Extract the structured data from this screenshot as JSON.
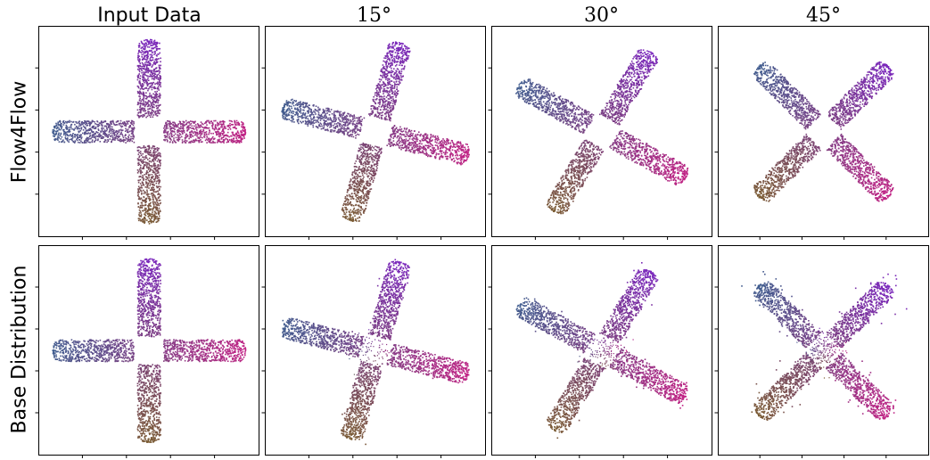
{
  "columns": [
    "Input Data",
    "15°",
    "30°",
    "45°"
  ],
  "rows": [
    "Flow4Flow",
    "Base Distribution"
  ],
  "colors": {
    "arm_up": "#7a24c4",
    "arm_right": "#c81f84",
    "arm_left": "#3a6090",
    "arm_down": "#7a5e2c",
    "frame": "#000000"
  },
  "chart_data": [
    {
      "type": "scatter",
      "row": "Flow4Flow",
      "column": "Input Data",
      "rotation_deg": 0,
      "noise": 0,
      "xlim": [
        -1,
        1
      ],
      "ylim": [
        -1,
        1
      ],
      "grid": false,
      "description_arms": [
        "up",
        "right",
        "down",
        "left"
      ]
    },
    {
      "type": "scatter",
      "row": "Flow4Flow",
      "column": "15°",
      "rotation_deg": 15,
      "noise": 0,
      "xlim": [
        -1,
        1
      ],
      "ylim": [
        -1,
        1
      ],
      "grid": false,
      "description_arms": [
        "up",
        "right",
        "down",
        "left"
      ]
    },
    {
      "type": "scatter",
      "row": "Flow4Flow",
      "column": "30°",
      "rotation_deg": 30,
      "noise": 0,
      "xlim": [
        -1,
        1
      ],
      "ylim": [
        -1,
        1
      ],
      "grid": false,
      "description_arms": [
        "up",
        "right",
        "down",
        "left"
      ]
    },
    {
      "type": "scatter",
      "row": "Flow4Flow",
      "column": "45°",
      "rotation_deg": 45,
      "noise": 0,
      "xlim": [
        -1,
        1
      ],
      "ylim": [
        -1,
        1
      ],
      "grid": false,
      "description_arms": [
        "up",
        "right",
        "down",
        "left"
      ]
    },
    {
      "type": "scatter",
      "row": "Base Distribution",
      "column": "Input Data",
      "rotation_deg": 0,
      "noise": 0,
      "xlim": [
        -1,
        1
      ],
      "ylim": [
        -1,
        1
      ],
      "grid": false,
      "description_arms": [
        "up",
        "right",
        "down",
        "left"
      ]
    },
    {
      "type": "scatter",
      "row": "Base Distribution",
      "column": "15°",
      "rotation_deg": 15,
      "noise": 0.35,
      "xlim": [
        -1,
        1
      ],
      "ylim": [
        -1,
        1
      ],
      "grid": false,
      "description_arms": [
        "up",
        "right",
        "down",
        "left"
      ]
    },
    {
      "type": "scatter",
      "row": "Base Distribution",
      "column": "30°",
      "rotation_deg": 30,
      "noise": 0.6,
      "xlim": [
        -1,
        1
      ],
      "ylim": [
        -1,
        1
      ],
      "grid": false,
      "description_arms": [
        "up",
        "right",
        "down",
        "left"
      ]
    },
    {
      "type": "scatter",
      "row": "Base Distribution",
      "column": "45°",
      "rotation_deg": 45,
      "noise": 0.9,
      "xlim": [
        -1,
        1
      ],
      "ylim": [
        -1,
        1
      ],
      "grid": false,
      "description_arms": [
        "up",
        "right",
        "down",
        "left"
      ]
    }
  ]
}
